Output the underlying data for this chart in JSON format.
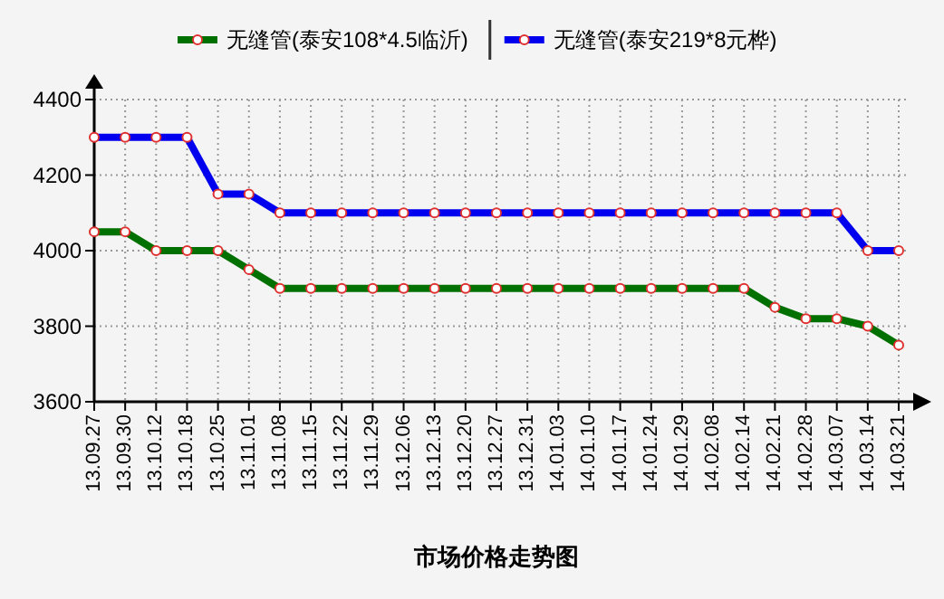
{
  "chart_data": {
    "type": "line",
    "title": "市场价格走势图",
    "categories": [
      "13.09.27",
      "13.09.30",
      "13.10.12",
      "13.10.18",
      "13.10.25",
      "13.11.01",
      "13.11.08",
      "13.11.15",
      "13.11.22",
      "13.11.29",
      "13.12.06",
      "13.12.13",
      "13.12.20",
      "13.12.27",
      "13.12.31",
      "14.01.03",
      "14.01.10",
      "14.01.17",
      "14.01.24",
      "14.01.29",
      "14.02.08",
      "14.02.14",
      "14.02.21",
      "14.02.28",
      "14.03.07",
      "14.03.14",
      "14.03.21"
    ],
    "series": [
      {
        "name": "无缝管(泰安108*4.5临沂)",
        "color": "#007000",
        "values": [
          4050,
          4050,
          4000,
          4000,
          4000,
          3950,
          3900,
          3900,
          3900,
          3900,
          3900,
          3900,
          3900,
          3900,
          3900,
          3900,
          3900,
          3900,
          3900,
          3900,
          3900,
          3900,
          3850,
          3820,
          3820,
          3800,
          3750
        ]
      },
      {
        "name": "无缝管(泰安219*8元桦)",
        "color": "#0000ee",
        "values": [
          4300,
          4300,
          4300,
          4300,
          4150,
          4150,
          4100,
          4100,
          4100,
          4100,
          4100,
          4100,
          4100,
          4100,
          4100,
          4100,
          4100,
          4100,
          4100,
          4100,
          4100,
          4100,
          4100,
          4100,
          4100,
          4000,
          4000
        ]
      }
    ],
    "ylim": [
      3600,
      4400
    ],
    "yticks": [
      3600,
      3800,
      4000,
      4200,
      4400
    ],
    "grid": true,
    "legend": "top",
    "marker": "circle",
    "line_style": "solid"
  }
}
